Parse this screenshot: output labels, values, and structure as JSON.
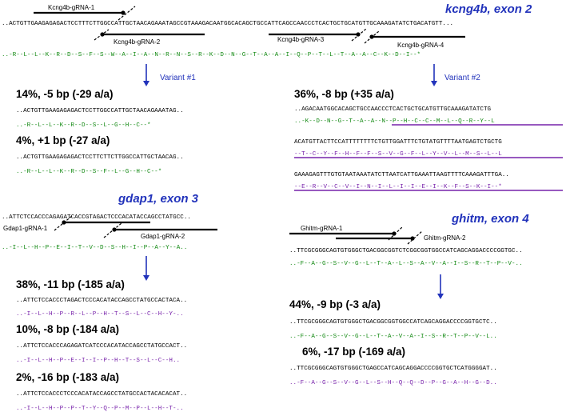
{
  "colors": {
    "blue": "#2233bb",
    "pam": "#1e90d6",
    "red": "#dd0000",
    "green": "#118811",
    "purple": "#7722aa",
    "black": "#000000"
  },
  "kcng4b": {
    "title": "kcng4b, exon 2",
    "wt_seq": "..ACTGTTGAAGAGAGACTCCTTTCTTGGCCATTGCTAACAGAAATAGCCGTAAAGACAATGGCACAGCTGCCATTCAGCCAACCCTCACTGCTGCATGTTGCAAAGATATCTGACATGTT...",
    "wt_aa": "..-R--L--L--K--R--D--S--F--S--W--A--I--A--N--R--N--S--R--K--D--N--G--T--A--A--I--Q--P--T--L--T--A--A--C--K--D--I--*",
    "grnas": [
      "Kcng4b-gRNA-1",
      "Kcng4b-gRNA-2",
      "Kcng4b-gRNA-3",
      "Kcng4b-gRNA-4"
    ],
    "variant1": {
      "label": "Variant #1",
      "a": {
        "head": "14%, -5 bp (-29 a/a)",
        "seq": "..ACTGTTGAAGAGAGACTCCTTGGCCATTGCTAACAGAAATAG..",
        "aa": "..-R--L--L--K--R--D--S--L--G--H--C--*"
      },
      "b": {
        "head": "4%, +1 bp (-27 a/a)",
        "seq": "..ACTGTTGAAGAGAGACTCCTTCTTCTTGGCCATTGCTAACAG..",
        "aa": "..-R--L--L--K--R--D--S--F--L--G--H--C--*"
      }
    },
    "variant2": {
      "label": "Variant #2",
      "head": "36%, -8 bp (+35 a/a)",
      "seq1": "..AGACAATGGCACAGCTGCCAACCCTCACTGCTGCATGTTGCAAAGATATCTG",
      "aa1": "..-K--D--N--G--T--A--A--N--P--H--C--C--M--L--Q--R--Y--L",
      "seq2": "ACATGTTACTTCCATTTTTTTTCTGTTGGATTTCTGTATGTTTTAATGAGTCTGCTG",
      "aa2": "--T--C--Y--F--H--F--F--S--V--G--F--L--Y--V--L--M--S--L--L",
      "seq3": "GAAAGAGTTTGTGTAATAAATATCTTAATCATTGAAATTAAGTTTTCAAAGATTTGA..",
      "aa3": "--E--R--V--C--V--I--N--I--L--I--I--E--I--K--F--S--K--I--*"
    }
  },
  "gdap1": {
    "title": "gdap1, exon 3",
    "wt_seq": "..ATTCTCCACCCAGAGATCACCGTAGACTCCCACATACCAGCCTATGCC..",
    "wt_aa": "..-I--L--H--P--E--I--T--V--D--S--H--I--P--A--Y--A..",
    "grnas": [
      "Gdap1-gRNA-1",
      "Gdap1-gRNA-2"
    ],
    "v1": {
      "head": "38%, -11 bp (-185 a/a)",
      "seq": "..ATTCTCCACCCTAGACTCCCACATACCAGCCTATGCCACTACA..",
      "aa": "..-I--L--H--P--R--L--P--H--T--S--L--C--H--Y-.."
    },
    "v2": {
      "head": "10%, -8 bp (-184 a/a)",
      "seq": "..ATTCTCCACCCAGAGATCATCCCACATACCAGCCTATGCCACT..",
      "aa": "..-I--L--H--P--E--I--I--P--H--T--S--L--C--H.."
    },
    "v3": {
      "head": "2%, -16 bp (-183 a/a)",
      "seq": "..ATTCTCCACCCTCCCACATACCAGCCTATGCCACTACACACAT..",
      "aa": "..-I--L--H--P--P--T--Y--Q--P--M--P--L--H--T-.."
    }
  },
  "ghitm": {
    "title": "ghitm, exon 4",
    "wt_seq": "..TTCGCGGGCAGTGTGGGCTGACGGCGGTCTCGGCGGTGGCCATCAGCAGGACCCCGGTGC..",
    "wt_aa": "..-F--A--G--S--V--G--L--T--A--L--S--A--V--A--I--S--R--T--P--V-..",
    "grnas": [
      "Ghitm-gRNA-1",
      "Ghitm-gRNA-2"
    ],
    "v1": {
      "head": "44%, -9 bp (-3 a/a)",
      "seq": "..TTCGCGGGCAGTGTGGGCTGACGGCGGTGGCCATCAGCAGGACCCCGGTGCTC..",
      "aa": "..-F--A--G--S--V--G--L--T--A--V--A--I--S--R--T--P--V--L.."
    },
    "v2": {
      "head": "6%, -17 bp (-169 a/a)",
      "seq": "..TTCGCGGGCAGTGTGGGCTGAGCCATCAGCAGGACCCCGGTGCTCATGGGGAT..",
      "aa": "..-F--A--G--S--V--G--L--S--H--Q--Q--D--P--G--A--H--G--D.."
    }
  }
}
